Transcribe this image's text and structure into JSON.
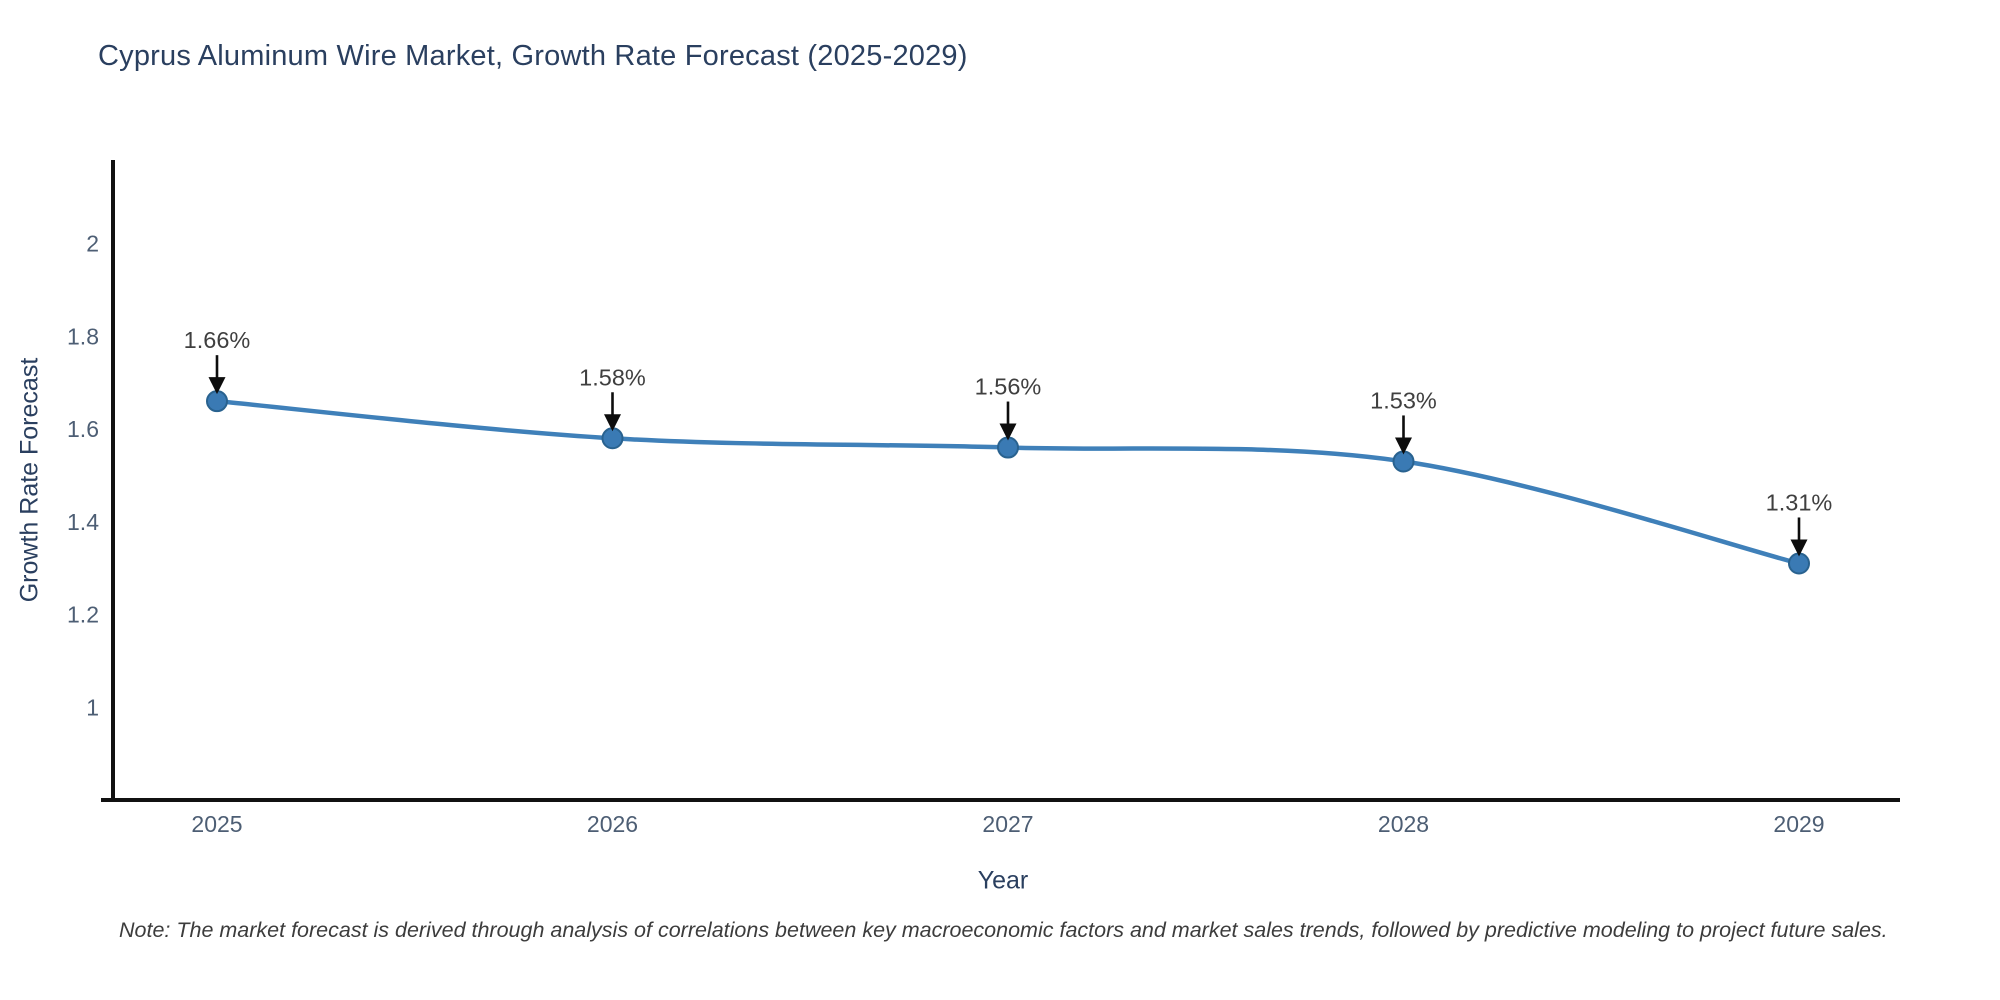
{
  "page": {
    "note": "Note: The market forecast is derived through analysis of correlations between key macroeconomic factors and market sales trends, followed by predictive modeling to project future sales."
  },
  "chart_data": {
    "type": "line",
    "title": "Cyprus Aluminum Wire Market, Growth Rate Forecast (2025-2029)",
    "xlabel": "Year",
    "ylabel": "Growth Rate Forecast",
    "categories": [
      "2025",
      "2026",
      "2027",
      "2028",
      "2029"
    ],
    "series": [
      {
        "name": "Growth Rate Forecast",
        "values": [
          1.66,
          1.58,
          1.56,
          1.53,
          1.31
        ]
      }
    ],
    "point_labels": [
      "1.66%",
      "1.58%",
      "1.56%",
      "1.53%",
      "1.31%"
    ],
    "y_ticks": [
      1,
      1.2,
      1.4,
      1.6,
      1.8,
      2
    ],
    "ylim": [
      0.8,
      2.18
    ],
    "grid": false,
    "legend": "none",
    "line_shape": "spline",
    "annotations": "black arrow pointing down at each data point with percent label above",
    "colors": {
      "line": "#3f80b9",
      "marker": "#3a7ab4",
      "marker_edge": "#29628f",
      "axis": "#111111",
      "tick_label": "#4d5e74",
      "title_text": "#2a3f5f",
      "annotation_text": "#3f3f3f",
      "arrow": "#0d0d0d",
      "background": "#ffffff",
      "note_text": "#3c3c3c"
    }
  }
}
